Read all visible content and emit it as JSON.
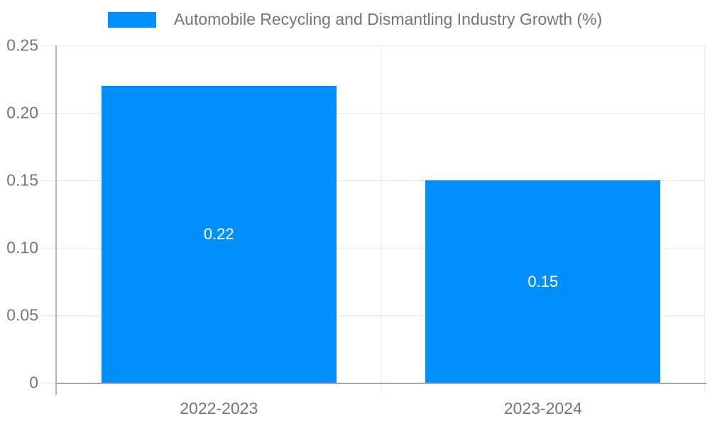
{
  "chart_data": {
    "type": "bar",
    "title": "Automobile Recycling and Dismantling Industry Growth (%)",
    "categories": [
      "2022-2023",
      "2023-2024"
    ],
    "values": [
      0.22,
      0.15
    ],
    "value_labels": [
      "0.22",
      "0.15"
    ],
    "ylim": [
      0,
      0.25
    ],
    "yticks": [
      {
        "value": 0,
        "label": "0"
      },
      {
        "value": 0.05,
        "label": "0.05"
      },
      {
        "value": 0.1,
        "label": "0.10"
      },
      {
        "value": 0.15,
        "label": "0.15"
      },
      {
        "value": 0.2,
        "label": "0.20"
      },
      {
        "value": 0.25,
        "label": "0.25"
      }
    ],
    "grid": true,
    "legend_position": "top",
    "colors": {
      "bar": "#008FFB",
      "grid": "#e7e7e7",
      "axis_x": "#a6a6a6",
      "axis_y": "#b6b6b6",
      "tick_text": "#757575",
      "data_label": "#ffffff",
      "background": "#ffffff"
    }
  }
}
